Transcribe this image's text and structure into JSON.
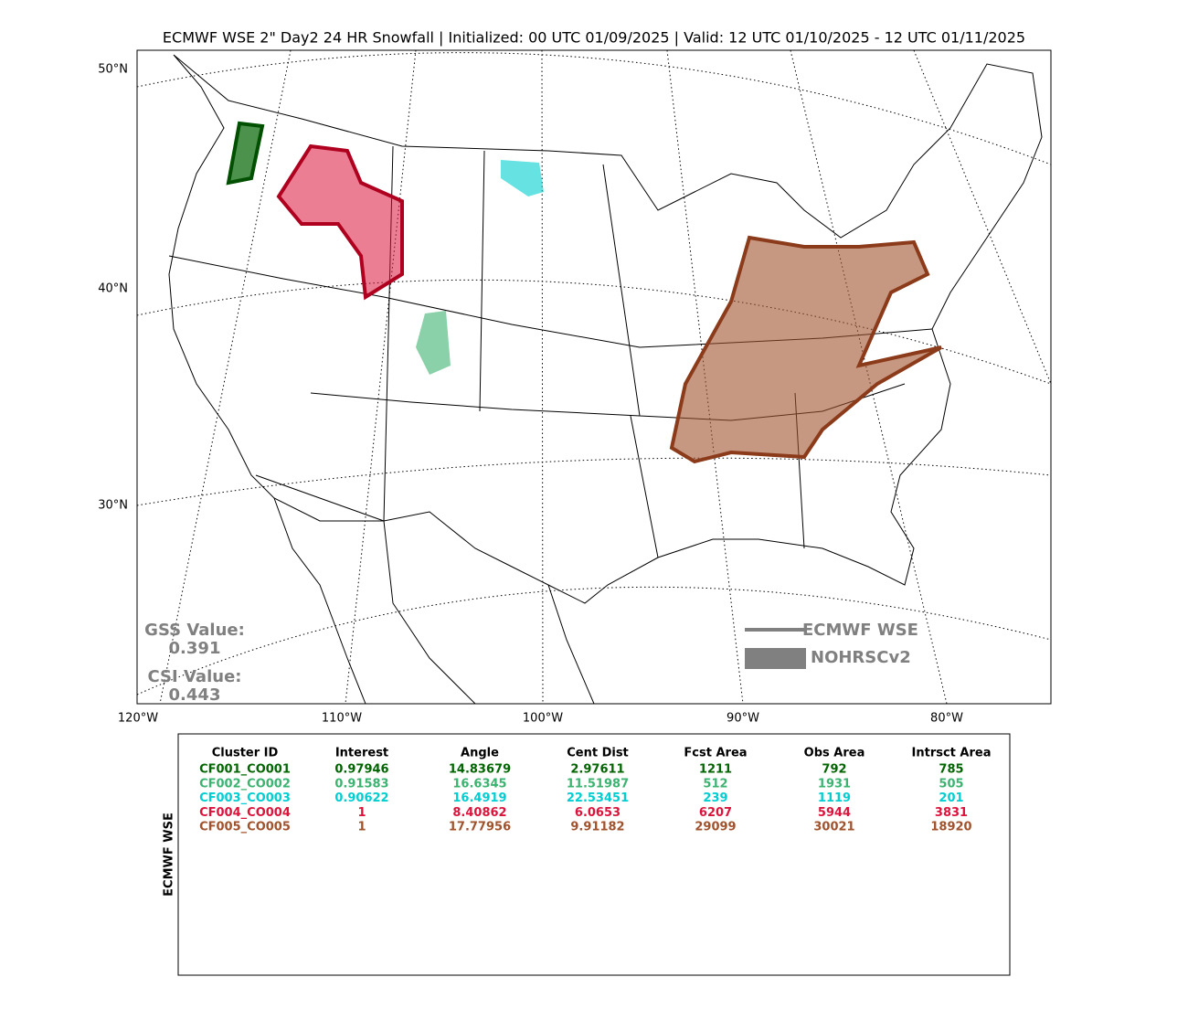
{
  "title": "ECMWF WSE 2\" Day2 24 HR Snowfall | Initialized: 00 UTC 01/09/2025 | Valid: 12 UTC 01/10/2025 - 12 UTC 01/11/2025",
  "map": {
    "lat_labels": [
      "50°N",
      "40°N",
      "30°N"
    ],
    "lon_labels": [
      "120°W",
      "110°W",
      "100°W",
      "90°W",
      "80°W"
    ],
    "stats": {
      "gss_label": "GSS Value:",
      "gss": "0.391",
      "csi_label": "CSI Value:",
      "csi": "0.443"
    },
    "legend": {
      "forecast": "ECMWF WSE",
      "observed": "NOHRSCv2",
      "color": "#808080"
    }
  },
  "table": {
    "side_label": "ECMWF WSE",
    "columns": [
      "Cluster ID",
      "Interest",
      "Angle",
      "Cent Dist",
      "Fcst Area",
      "Obs Area",
      "Intrsct Area"
    ],
    "row_colors": [
      "#006400",
      "#3cb371",
      "#00ced1",
      "#dc143c",
      "#a0522d"
    ],
    "rows": [
      [
        "CF001_CO001",
        "0.97946",
        "14.83679",
        "2.97611",
        "1211",
        "792",
        "785"
      ],
      [
        "CF002_CO002",
        "0.91583",
        "16.6345",
        "11.51987",
        "512",
        "1931",
        "505"
      ],
      [
        "CF003_CO003",
        "0.90622",
        "16.4919",
        "22.53451",
        "239",
        "1119",
        "201"
      ],
      [
        "CF004_CO004",
        "1",
        "8.40862",
        "6.0653",
        "6207",
        "5944",
        "3831"
      ],
      [
        "CF005_CO005",
        "1",
        "17.77956",
        "9.91182",
        "29099",
        "30021",
        "18920"
      ]
    ]
  }
}
